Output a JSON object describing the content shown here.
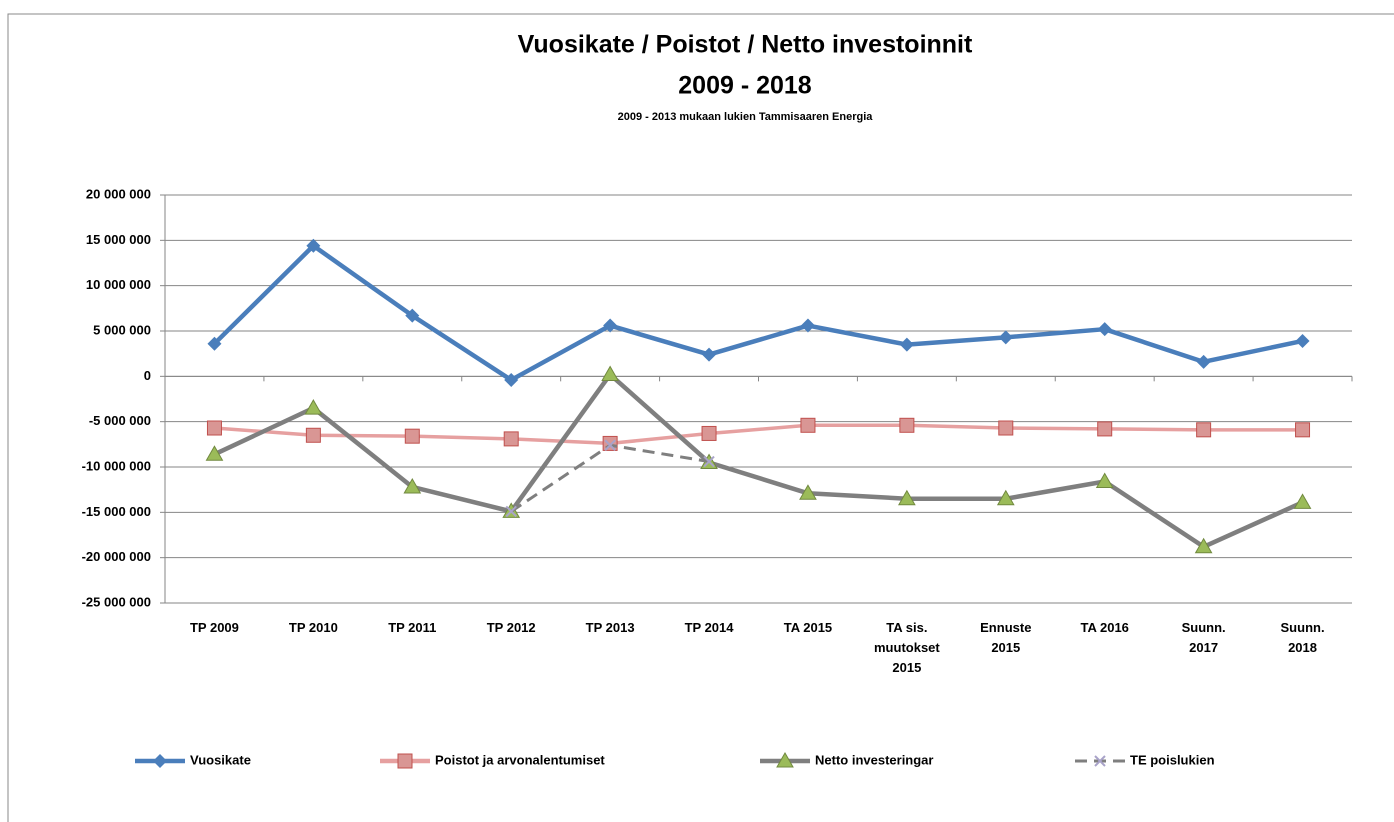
{
  "chart_data": {
    "type": "line",
    "title": [
      "Vuosikate / Poistot / Netto investoinnit",
      "2009 - 2018"
    ],
    "subtitle": "2009 - 2013  mukaan lukien Tammisaaren Energia",
    "categories": [
      "TP 2009",
      "TP 2010",
      "TP 2011",
      "TP 2012",
      "TP 2013",
      "TP 2014",
      "TA 2015",
      "TA sis. muutokset 2015",
      "Ennuste 2015",
      "TA 2016",
      "Suunn. 2017",
      "Suunn. 2018"
    ],
    "series": [
      {
        "name": "Vuosikate",
        "color": "#4a7ebb",
        "marker": "diamond",
        "marker_color": "#4a7ebb",
        "values": [
          3600000,
          14400000,
          6700000,
          -400000,
          5600000,
          2400000,
          5600000,
          3500000,
          4300000,
          5200000,
          1600000,
          3900000
        ]
      },
      {
        "name": "Poistot ja arvonalentumiset",
        "color": "#e6a0a0",
        "marker": "square",
        "marker_color": "#d99694",
        "values": [
          -5700000,
          -6500000,
          -6600000,
          -6900000,
          -7400000,
          -6300000,
          -5400000,
          -5400000,
          -5700000,
          -5800000,
          -5900000,
          -5900000
        ]
      },
      {
        "name": "Netto investeringar",
        "color": "#7f7f7f",
        "marker": "triangle",
        "marker_color": "#9bbb59",
        "values": [
          -8600000,
          -3500000,
          -12200000,
          -14900000,
          200000,
          -9500000,
          -12900000,
          -13500000,
          -13500000,
          -11600000,
          -18800000,
          -13900000
        ]
      },
      {
        "name": "TE poislukien",
        "color": "#7f7f7f",
        "marker": "x",
        "marker_color": "#a9a3c9",
        "dashed": true,
        "values": [
          null,
          null,
          null,
          -14900000,
          -7600000,
          -9400000,
          null,
          null,
          null,
          null,
          null,
          null
        ]
      }
    ],
    "ylim": [
      -25000000,
      20000000
    ],
    "yticks": [
      {
        "value": -25000000,
        "label": "-25 000 000"
      },
      {
        "value": -20000000,
        "label": "-20 000 000"
      },
      {
        "value": -15000000,
        "label": "-15 000 000"
      },
      {
        "value": -10000000,
        "label": "-10 000 000"
      },
      {
        "value": -5000000,
        "label": "-5 000 000"
      },
      0,
      {
        "value": 5000000,
        "label": "5 000 000"
      },
      {
        "value": 10000000,
        "label": "10 000 000"
      },
      {
        "value": 15000000,
        "label": "15 000 000"
      },
      {
        "value": 20000000,
        "label": "20 000 000"
      }
    ],
    "grid": true,
    "legend": "bottom"
  }
}
